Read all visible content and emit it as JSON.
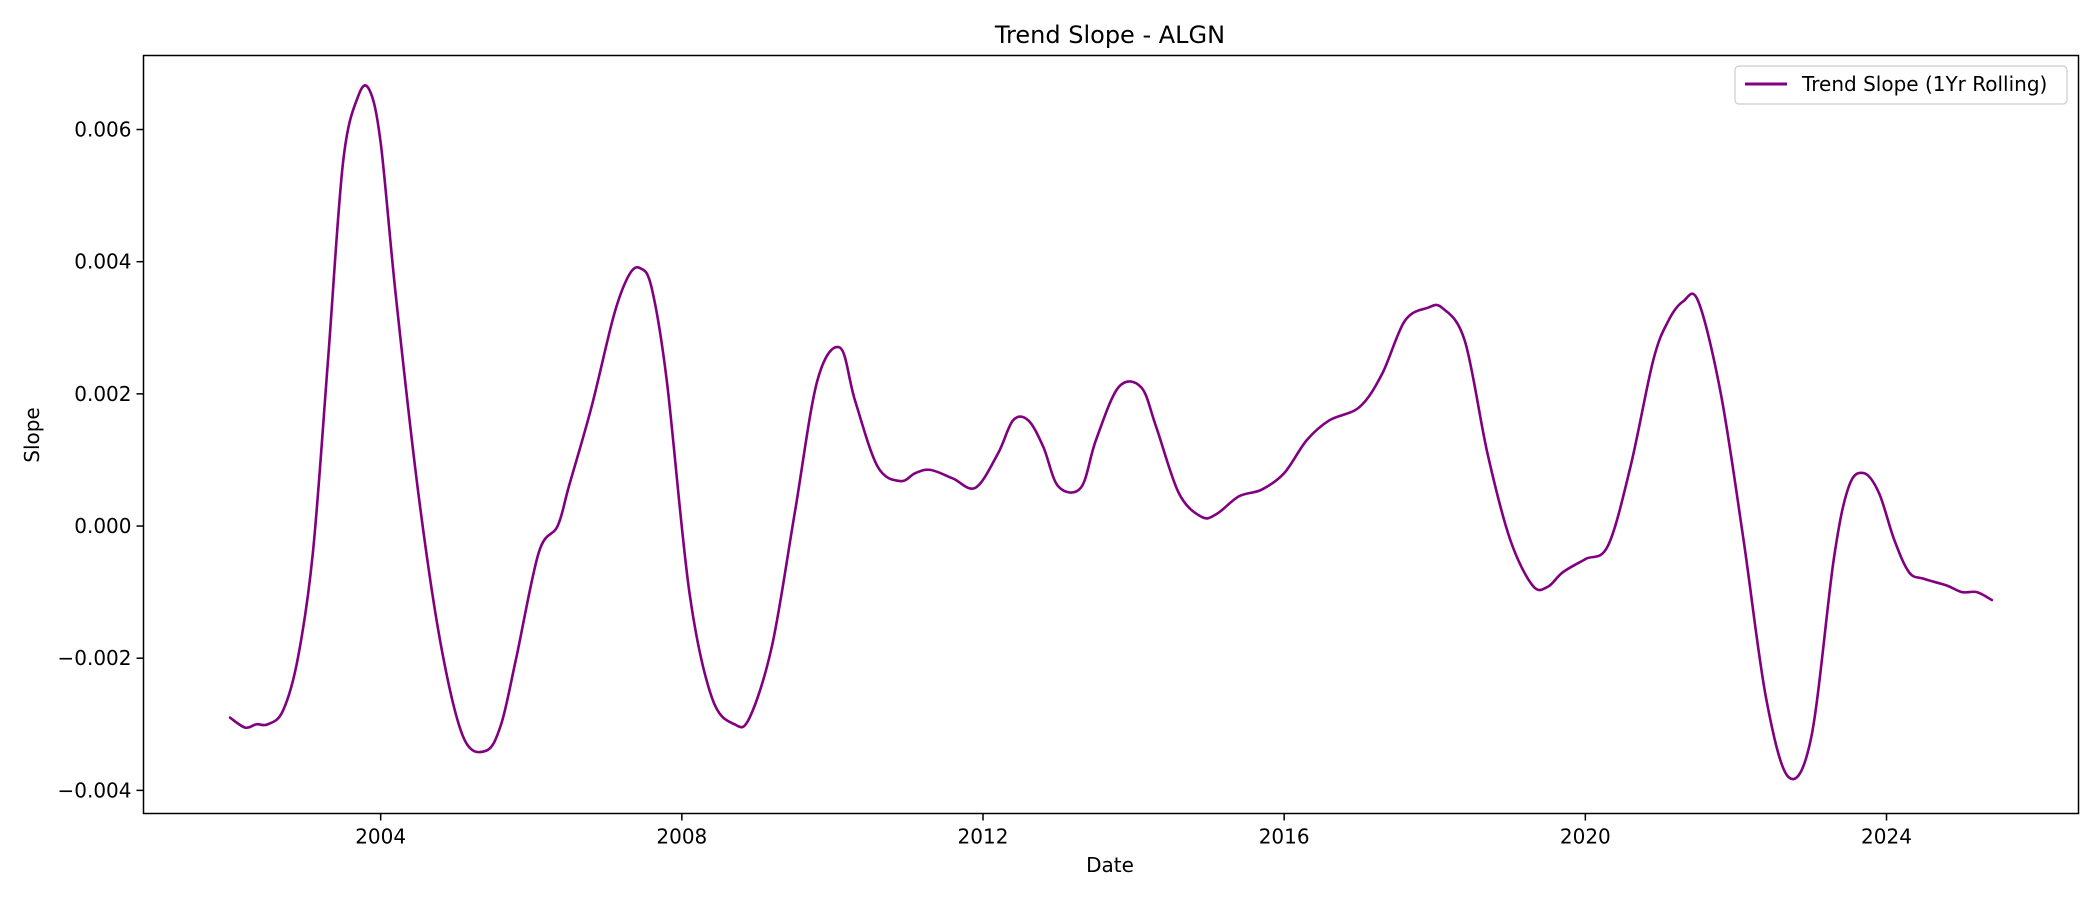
{
  "chart_data": {
    "type": "line",
    "title": "Trend Slope - ALGN",
    "xlabel": "Date",
    "ylabel": "Slope",
    "xlim": [
      2000.85,
      2026.55
    ],
    "ylim": [
      -0.00435,
      0.00712
    ],
    "x_ticks": [
      2004,
      2008,
      2012,
      2016,
      2020,
      2024
    ],
    "x_tick_labels": [
      "2004",
      "2008",
      "2012",
      "2016",
      "2020",
      "2024"
    ],
    "y_ticks": [
      -0.004,
      -0.002,
      0.0,
      0.002,
      0.004,
      0.006
    ],
    "y_tick_labels": [
      "−0.004",
      "−0.002",
      "0.000",
      "0.002",
      "0.004",
      "0.006"
    ],
    "grid": false,
    "legend": {
      "position": "top-right",
      "entries": [
        "Trend Slope (1Yr Rolling)"
      ]
    },
    "series": [
      {
        "name": "Trend Slope (1Yr Rolling)",
        "color": "#800080",
        "x": [
          2002.0,
          2002.2,
          2002.35,
          2002.5,
          2002.7,
          2002.9,
          2003.1,
          2003.3,
          2003.5,
          2003.7,
          2003.85,
          2004.0,
          2004.2,
          2004.5,
          2004.8,
          2005.1,
          2005.4,
          2005.6,
          2005.8,
          2006.1,
          2006.35,
          2006.5,
          2006.8,
          2007.1,
          2007.3,
          2007.45,
          2007.6,
          2007.8,
          2008.1,
          2008.4,
          2008.7,
          2008.9,
          2009.2,
          2009.5,
          2009.8,
          2010.1,
          2010.3,
          2010.6,
          2010.9,
          2011.1,
          2011.3,
          2011.6,
          2011.9,
          2012.2,
          2012.4,
          2012.6,
          2012.8,
          2013.0,
          2013.3,
          2013.5,
          2013.8,
          2014.1,
          2014.3,
          2014.6,
          2014.9,
          2015.1,
          2015.4,
          2015.7,
          2016.0,
          2016.3,
          2016.6,
          2017.0,
          2017.3,
          2017.6,
          2017.9,
          2018.1,
          2018.4,
          2018.7,
          2019.0,
          2019.3,
          2019.5,
          2019.7,
          2020.0,
          2020.3,
          2020.6,
          2020.9,
          2021.1,
          2021.3,
          2021.5,
          2021.8,
          2022.1,
          2022.4,
          2022.7,
          2023.0,
          2023.3,
          2023.5,
          2023.7,
          2023.9,
          2024.1,
          2024.3,
          2024.5,
          2024.8,
          2025.0,
          2025.2,
          2025.4
        ],
        "values": [
          -0.0029,
          -0.00305,
          -0.003,
          -0.003,
          -0.0028,
          -0.002,
          -0.0004,
          0.0025,
          0.0055,
          0.0065,
          0.0066,
          0.0058,
          0.0035,
          0.0005,
          -0.0018,
          -0.0032,
          -0.0034,
          -0.003,
          -0.002,
          -0.0004,
          0.0,
          0.0006,
          0.0018,
          0.0032,
          0.0038,
          0.0039,
          0.0036,
          0.0022,
          -0.001,
          -0.0026,
          -0.003,
          -0.0029,
          -0.0018,
          0.0002,
          0.0022,
          0.0027,
          0.0019,
          0.0009,
          0.00068,
          0.0008,
          0.00085,
          0.00072,
          0.00058,
          0.0011,
          0.0016,
          0.0016,
          0.0012,
          0.0006,
          0.00058,
          0.0013,
          0.0021,
          0.0021,
          0.0015,
          0.0005,
          0.00014,
          0.00018,
          0.00045,
          0.00055,
          0.0008,
          0.0013,
          0.0016,
          0.0018,
          0.0023,
          0.0031,
          0.0033,
          0.0033,
          0.0028,
          0.0011,
          -0.0002,
          -0.0009,
          -0.00092,
          -0.0007,
          -0.0005,
          -0.0003,
          0.0009,
          0.0025,
          0.0031,
          0.0034,
          0.0034,
          0.002,
          -0.0002,
          -0.0026,
          -0.0038,
          -0.0032,
          -0.0005,
          0.0006,
          0.0008,
          0.0005,
          -0.0002,
          -0.0007,
          -0.0008,
          -0.0009,
          -0.001,
          -0.001,
          -0.00112
        ]
      }
    ]
  }
}
